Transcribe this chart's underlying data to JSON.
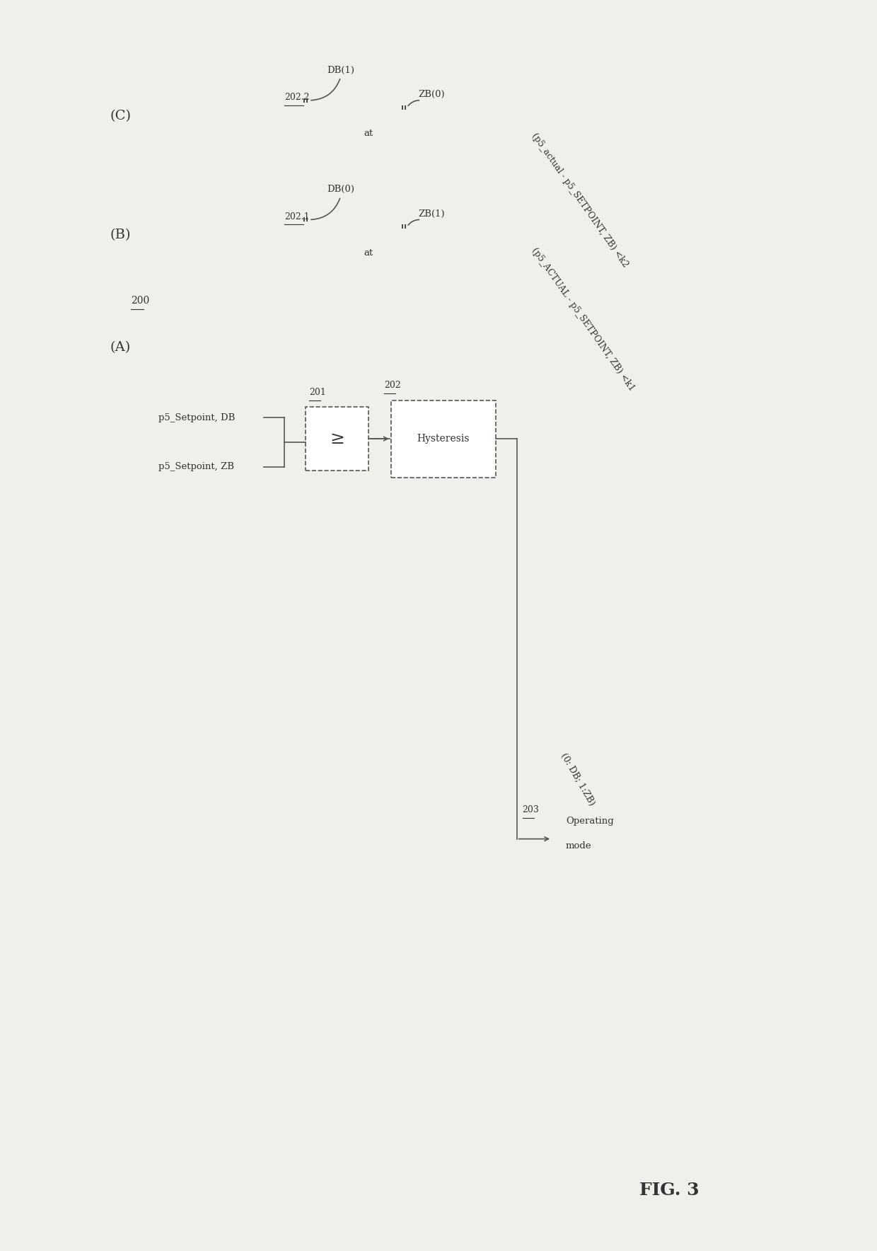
{
  "bg_color": "#f0efea",
  "fig_label": "FIG. 3",
  "section_A": {
    "label": "(A)",
    "ref_200": "200",
    "box_201_label": "201",
    "box_201_text": "≥",
    "box_202_label": "202",
    "box_202_text": "Hysteresis",
    "ref_203": "203",
    "input1": "p5_Setpoint, ZB",
    "input2": "p5_Setpoint, DB",
    "output_line1": "Operating",
    "output_line2": "mode",
    "output_text": "(0: DB; 1:ZB)"
  },
  "section_B": {
    "label": "(B)",
    "ref_2021": "202.1",
    "condition": "(p5_ACTUAL - p5_SETPOINT, ZB) <k1",
    "db_label": "DB(0)",
    "zb_label": "ZB(1)",
    "at_text": "at"
  },
  "section_C": {
    "label": "(C)",
    "ref_2022": "202.2",
    "condition": "(p5_actual - p5_SETPOINT, ZB) <k2",
    "db_label": "DB(1)",
    "zb_label": "ZB(0)",
    "at_text": "at"
  }
}
